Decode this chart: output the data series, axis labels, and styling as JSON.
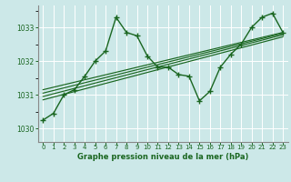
{
  "title": "Graphe pression niveau de la mer (hPa)",
  "bg_color": "#cce8e8",
  "grid_color": "#ffffff",
  "line_color": "#1a6620",
  "xlim": [
    -0.5,
    23.5
  ],
  "ylim": [
    1029.6,
    1033.65
  ],
  "yticks": [
    1030,
    1031,
    1032,
    1033
  ],
  "xticks": [
    0,
    1,
    2,
    3,
    4,
    5,
    6,
    7,
    8,
    9,
    10,
    11,
    12,
    13,
    14,
    15,
    16,
    17,
    18,
    19,
    20,
    21,
    22,
    23
  ],
  "main_series": [
    [
      0,
      1030.25
    ],
    [
      1,
      1030.45
    ],
    [
      2,
      1031.0
    ],
    [
      3,
      1031.15
    ],
    [
      4,
      1031.55
    ],
    [
      5,
      1032.0
    ],
    [
      6,
      1032.3
    ],
    [
      7,
      1033.3
    ],
    [
      8,
      1032.85
    ],
    [
      9,
      1032.75
    ],
    [
      10,
      1032.15
    ],
    [
      11,
      1031.82
    ],
    [
      12,
      1031.82
    ],
    [
      13,
      1031.6
    ],
    [
      14,
      1031.55
    ],
    [
      15,
      1030.82
    ],
    [
      16,
      1031.1
    ],
    [
      17,
      1031.82
    ],
    [
      18,
      1032.2
    ],
    [
      19,
      1032.5
    ],
    [
      20,
      1033.0
    ],
    [
      21,
      1033.3
    ],
    [
      22,
      1033.42
    ],
    [
      23,
      1032.85
    ]
  ],
  "trend_lines": [
    [
      [
        0,
        1031.15
      ],
      [
        23,
        1032.85
      ]
    ],
    [
      [
        0,
        1031.05
      ],
      [
        23,
        1032.82
      ]
    ],
    [
      [
        0,
        1030.95
      ],
      [
        23,
        1032.78
      ]
    ],
    [
      [
        0,
        1030.85
      ],
      [
        23,
        1032.72
      ]
    ]
  ]
}
